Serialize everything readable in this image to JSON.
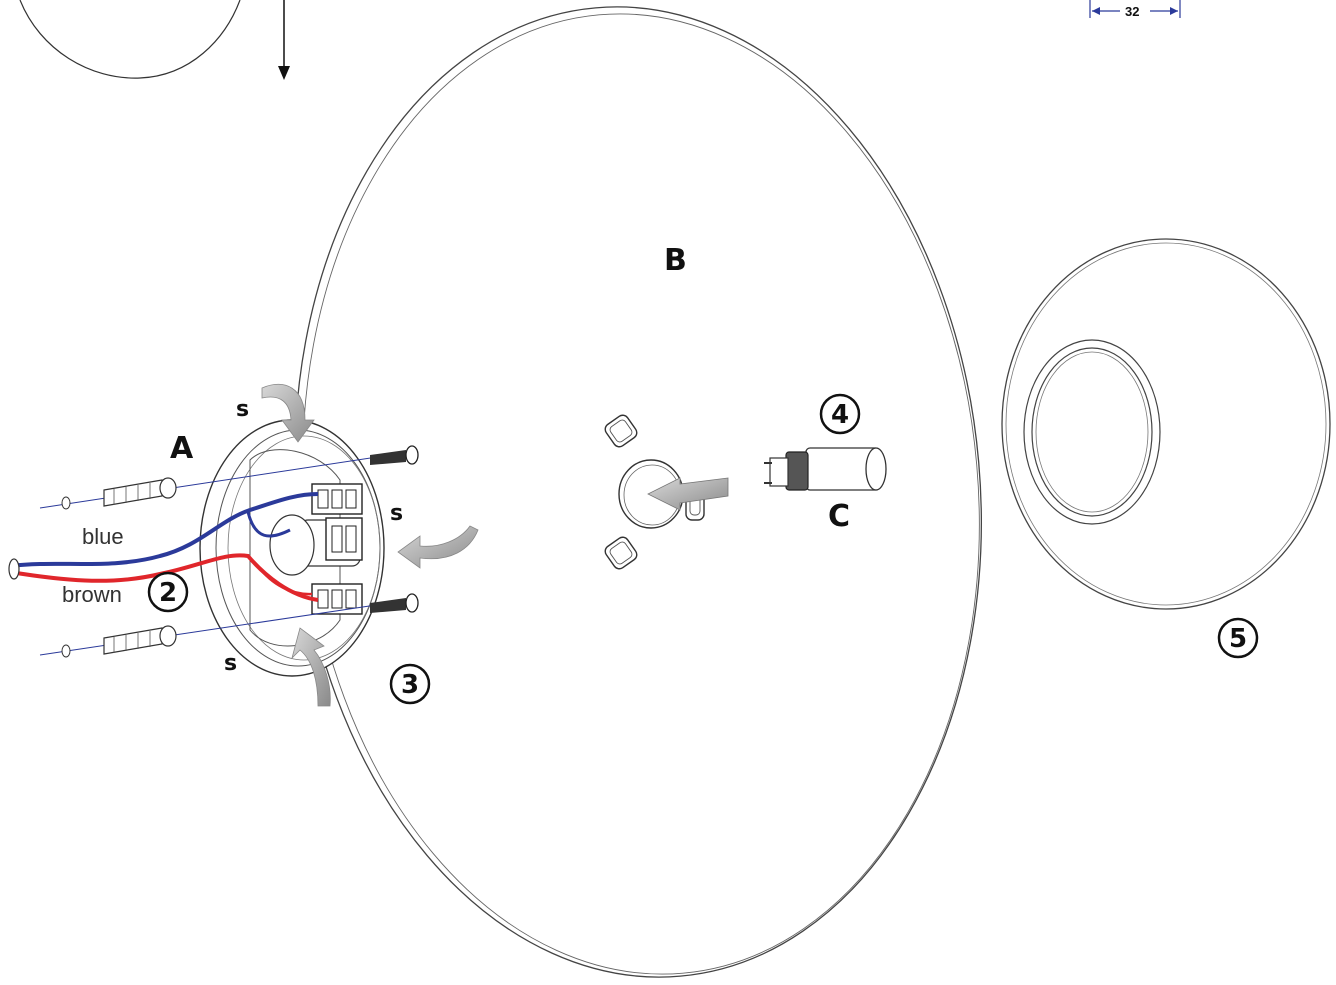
{
  "labels": {
    "A": "A",
    "B": "B",
    "C": "C",
    "s": "s",
    "blue": "blue",
    "brown": "brown",
    "dimension": "32"
  },
  "steps": [
    "2",
    "3",
    "4",
    "5"
  ],
  "colors": {
    "blue_wire": "#2b3a9a",
    "brown_wire": "#e0262b",
    "line": "#333333",
    "arrow_fill": "#9a9a9a"
  }
}
